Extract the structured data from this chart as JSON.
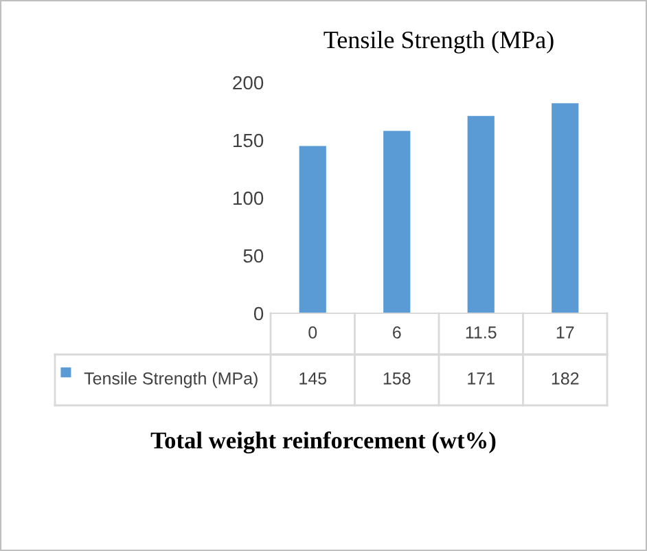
{
  "chart_data": {
    "type": "bar",
    "title": "Tensile Strength (MPa)",
    "xlabel": "Total weight reinforcement (wt%)",
    "categories": [
      "0",
      "6",
      "11.5",
      "17"
    ],
    "series": [
      {
        "name": "Tensile Strength (MPa)",
        "color": "#5b9bd5",
        "values": [
          145,
          158,
          171,
          182
        ]
      }
    ],
    "ylim": [
      0,
      200
    ],
    "yticks": [
      0,
      50,
      100,
      150,
      200
    ],
    "grid": false,
    "data_labels": true,
    "legend": "bottom left"
  }
}
